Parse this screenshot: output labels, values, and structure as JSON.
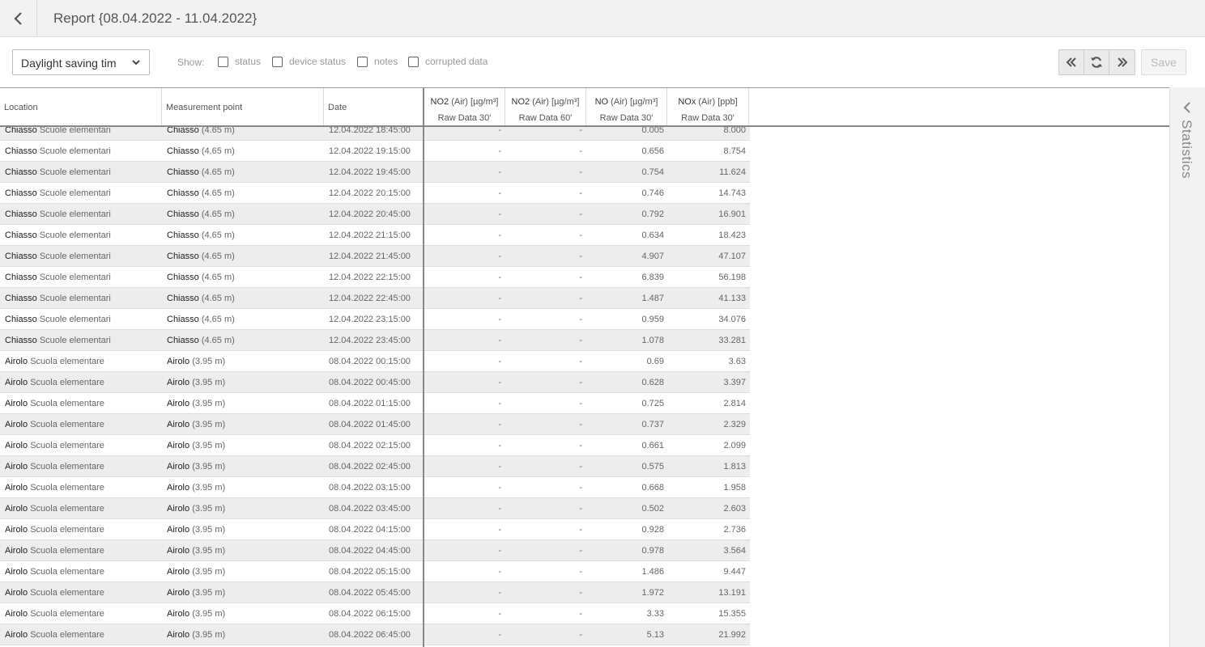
{
  "header": {
    "title": "Report {08.04.2022 - 11.04.2022}"
  },
  "toolbar": {
    "timezone_select": "Daylight saving tim",
    "show_label": "Show:",
    "checkboxes": [
      {
        "label": "status",
        "checked": false
      },
      {
        "label": "device status",
        "checked": false
      },
      {
        "label": "notes",
        "checked": false
      },
      {
        "label": "corrupted data",
        "checked": false
      }
    ],
    "save_label": "Save"
  },
  "table": {
    "columns": {
      "location": "Location",
      "measurement_point": "Measurement point",
      "date": "Date",
      "no2_30": {
        "name": "NO2",
        "unit": "(Air) [µg/m³]",
        "sub": "Raw Data 30'"
      },
      "no2_60": {
        "name": "NO2",
        "unit": "(Air) [µg/m³]",
        "sub": "Raw Data 60'"
      },
      "no_30": {
        "name": "NO",
        "unit": "(Air) [µg/m³]",
        "sub": "Raw Data 30'"
      },
      "nox_30": {
        "name": "NOx",
        "unit": "(Air) [ppb]",
        "sub": "Raw Data 30'"
      }
    },
    "rows": [
      {
        "loc_a": "Chiasso",
        "loc_b": "Scuole elementari",
        "mp_a": "Chiasso",
        "mp_b": "(4.65 m)",
        "date": "12.04.2022 18:45:00",
        "v1": "-",
        "v2": "-",
        "v3": "0.005",
        "v4": "8.000"
      },
      {
        "loc_a": "Chiasso",
        "loc_b": "Scuole elementari",
        "mp_a": "Chiasso",
        "mp_b": "(4.65 m)",
        "date": "12.04.2022 19:15:00",
        "v1": "-",
        "v2": "-",
        "v3": "0.656",
        "v4": "8.754"
      },
      {
        "loc_a": "Chiasso",
        "loc_b": "Scuole elementari",
        "mp_a": "Chiasso",
        "mp_b": "(4.65 m)",
        "date": "12.04.2022 19:45:00",
        "v1": "-",
        "v2": "-",
        "v3": "0.754",
        "v4": "11.624"
      },
      {
        "loc_a": "Chiasso",
        "loc_b": "Scuole elementari",
        "mp_a": "Chiasso",
        "mp_b": "(4.65 m)",
        "date": "12.04.2022 20:15:00",
        "v1": "-",
        "v2": "-",
        "v3": "0.746",
        "v4": "14.743"
      },
      {
        "loc_a": "Chiasso",
        "loc_b": "Scuole elementari",
        "mp_a": "Chiasso",
        "mp_b": "(4.65 m)",
        "date": "12.04.2022 20:45:00",
        "v1": "-",
        "v2": "-",
        "v3": "0.792",
        "v4": "16.901"
      },
      {
        "loc_a": "Chiasso",
        "loc_b": "Scuole elementari",
        "mp_a": "Chiasso",
        "mp_b": "(4.65 m)",
        "date": "12.04.2022 21:15:00",
        "v1": "-",
        "v2": "-",
        "v3": "0.634",
        "v4": "18.423"
      },
      {
        "loc_a": "Chiasso",
        "loc_b": "Scuole elementari",
        "mp_a": "Chiasso",
        "mp_b": "(4.65 m)",
        "date": "12.04.2022 21:45:00",
        "v1": "-",
        "v2": "-",
        "v3": "4.907",
        "v4": "47.107"
      },
      {
        "loc_a": "Chiasso",
        "loc_b": "Scuole elementari",
        "mp_a": "Chiasso",
        "mp_b": "(4.65 m)",
        "date": "12.04.2022 22:15:00",
        "v1": "-",
        "v2": "-",
        "v3": "6.839",
        "v4": "56.198"
      },
      {
        "loc_a": "Chiasso",
        "loc_b": "Scuole elementari",
        "mp_a": "Chiasso",
        "mp_b": "(4.65 m)",
        "date": "12.04.2022 22:45:00",
        "v1": "-",
        "v2": "-",
        "v3": "1.487",
        "v4": "41.133"
      },
      {
        "loc_a": "Chiasso",
        "loc_b": "Scuole elementari",
        "mp_a": "Chiasso",
        "mp_b": "(4.65 m)",
        "date": "12.04.2022 23:15:00",
        "v1": "-",
        "v2": "-",
        "v3": "0.959",
        "v4": "34.076"
      },
      {
        "loc_a": "Chiasso",
        "loc_b": "Scuole elementari",
        "mp_a": "Chiasso",
        "mp_b": "(4.65 m)",
        "date": "12.04.2022 23:45:00",
        "v1": "-",
        "v2": "-",
        "v3": "1.078",
        "v4": "33.281"
      },
      {
        "loc_a": "Airolo",
        "loc_b": "Scuola elementare",
        "mp_a": "Airolo",
        "mp_b": "(3.95 m)",
        "date": "08.04.2022 00:15:00",
        "v1": "-",
        "v2": "-",
        "v3": "0.69",
        "v4": "3.63"
      },
      {
        "loc_a": "Airolo",
        "loc_b": "Scuola elementare",
        "mp_a": "Airolo",
        "mp_b": "(3.95 m)",
        "date": "08.04.2022 00:45:00",
        "v1": "-",
        "v2": "-",
        "v3": "0.628",
        "v4": "3.397"
      },
      {
        "loc_a": "Airolo",
        "loc_b": "Scuola elementare",
        "mp_a": "Airolo",
        "mp_b": "(3.95 m)",
        "date": "08.04.2022 01:15:00",
        "v1": "-",
        "v2": "-",
        "v3": "0.725",
        "v4": "2.814"
      },
      {
        "loc_a": "Airolo",
        "loc_b": "Scuola elementare",
        "mp_a": "Airolo",
        "mp_b": "(3.95 m)",
        "date": "08.04.2022 01:45:00",
        "v1": "-",
        "v2": "-",
        "v3": "0.737",
        "v4": "2.329"
      },
      {
        "loc_a": "Airolo",
        "loc_b": "Scuola elementare",
        "mp_a": "Airolo",
        "mp_b": "(3.95 m)",
        "date": "08.04.2022 02:15:00",
        "v1": "-",
        "v2": "-",
        "v3": "0.661",
        "v4": "2.099"
      },
      {
        "loc_a": "Airolo",
        "loc_b": "Scuola elementare",
        "mp_a": "Airolo",
        "mp_b": "(3.95 m)",
        "date": "08.04.2022 02:45:00",
        "v1": "-",
        "v2": "-",
        "v3": "0.575",
        "v4": "1.813"
      },
      {
        "loc_a": "Airolo",
        "loc_b": "Scuola elementare",
        "mp_a": "Airolo",
        "mp_b": "(3.95 m)",
        "date": "08.04.2022 03:15:00",
        "v1": "-",
        "v2": "-",
        "v3": "0.668",
        "v4": "1.958"
      },
      {
        "loc_a": "Airolo",
        "loc_b": "Scuola elementare",
        "mp_a": "Airolo",
        "mp_b": "(3.95 m)",
        "date": "08.04.2022 03:45:00",
        "v1": "-",
        "v2": "-",
        "v3": "0.502",
        "v4": "2.603"
      },
      {
        "loc_a": "Airolo",
        "loc_b": "Scuola elementare",
        "mp_a": "Airolo",
        "mp_b": "(3.95 m)",
        "date": "08.04.2022 04:15:00",
        "v1": "-",
        "v2": "-",
        "v3": "0.928",
        "v4": "2.736"
      },
      {
        "loc_a": "Airolo",
        "loc_b": "Scuola elementare",
        "mp_a": "Airolo",
        "mp_b": "(3.95 m)",
        "date": "08.04.2022 04:45:00",
        "v1": "-",
        "v2": "-",
        "v3": "0.978",
        "v4": "3.564"
      },
      {
        "loc_a": "Airolo",
        "loc_b": "Scuola elementare",
        "mp_a": "Airolo",
        "mp_b": "(3.95 m)",
        "date": "08.04.2022 05:15:00",
        "v1": "-",
        "v2": "-",
        "v3": "1.486",
        "v4": "9.447"
      },
      {
        "loc_a": "Airolo",
        "loc_b": "Scuola elementare",
        "mp_a": "Airolo",
        "mp_b": "(3.95 m)",
        "date": "08.04.2022 05:45:00",
        "v1": "-",
        "v2": "-",
        "v3": "1.972",
        "v4": "13.191"
      },
      {
        "loc_a": "Airolo",
        "loc_b": "Scuola elementare",
        "mp_a": "Airolo",
        "mp_b": "(3.95 m)",
        "date": "08.04.2022 06:15:00",
        "v1": "-",
        "v2": "-",
        "v3": "3.33",
        "v4": "15.355"
      },
      {
        "loc_a": "Airolo",
        "loc_b": "Scuola elementare",
        "mp_a": "Airolo",
        "mp_b": "(3.95 m)",
        "date": "08.04.2022 06:45:00",
        "v1": "-",
        "v2": "-",
        "v3": "5.13",
        "v4": "21.992"
      }
    ]
  },
  "side_panel": {
    "label": "Statistics"
  },
  "icons": {
    "back": "chevron-left-icon",
    "select": "chevron-down-icon",
    "first": "double-chevron-left-icon",
    "refresh": "refresh-icon",
    "last": "double-chevron-right-icon",
    "stats_toggle": "chevron-left-icon"
  }
}
